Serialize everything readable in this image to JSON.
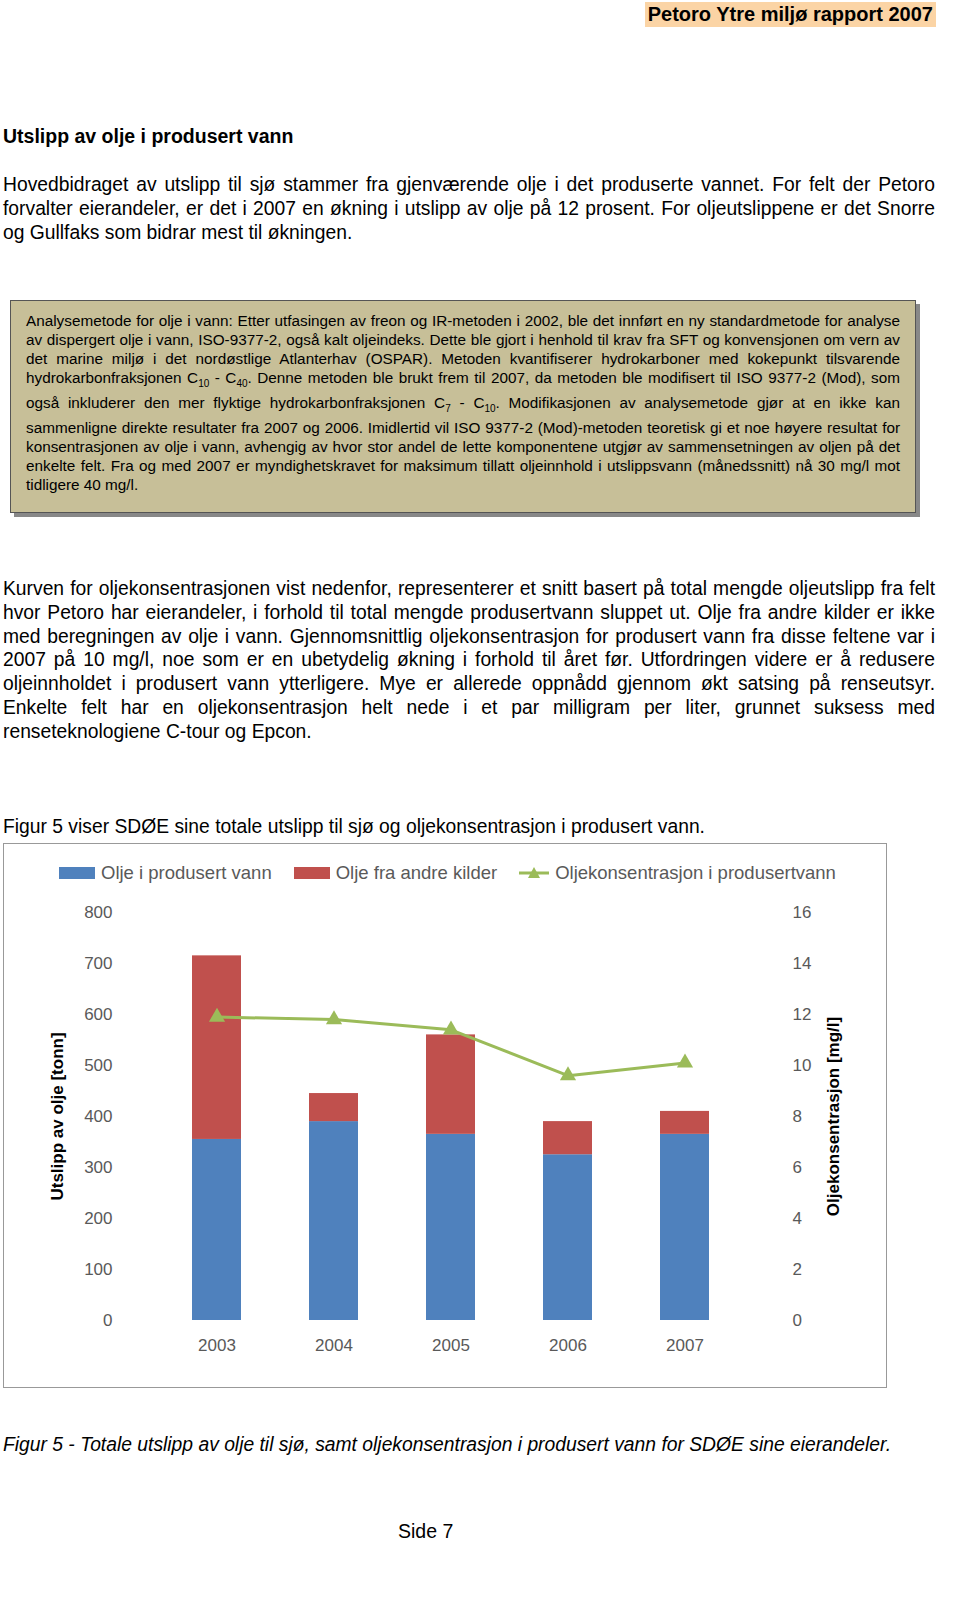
{
  "header": "Petoro Ytre miljø rapport 2007",
  "heading": "Utslipp av olje i produsert vann",
  "paragraph_1": "Hovedbidraget av utslipp til sjø stammer fra gjenværende olje i det produserte vannet. For felt der Petoro forvalter eierandeler, er det i 2007 en økning i utslipp av olje på 12 prosent. For oljeutslippene er det Snorre og Gullfaks som bidrar mest til økningen.",
  "box": [
    "Analysemetode for olje i vann: Etter utfasingen av freon og IR-metoden i 2002, ble det innført en ny standardmetode for analyse av dispergert olje i vann, ISO-9377-2, også kalt oljeindeks. Dette ble gjort i henhold til krav fra SFT og konvensjonen om vern av det marine miljø i det nordøstlige Atlanterhav (OSPAR). Metoden kvantifiserer hydrokarboner med kokepunkt tilsvarende hydrokarbonfraksjonen C",
    {
      "sub": "10"
    },
    " - C",
    {
      "sub": "40"
    },
    ". Denne metoden ble brukt frem til 2007, da metoden ble modifisert til ISO 9377-2 (Mod), som også inkluderer den mer flyktige hydrokarbonfraksjonen C",
    {
      "sub": "7"
    },
    " - C",
    {
      "sub": "10"
    },
    ". Modifikasjonen av analysemetode gjør at en ikke kan sammenligne direkte resultater fra 2007 og 2006. Imidlertid vil ISO 9377-2 (Mod)-metoden teoretisk gi et noe høyere resultat for konsentrasjonen av olje i vann, avhengig av hvor stor andel de lette komponentene utgjør av sammensetningen av oljen på det enkelte felt. Fra og med 2007 er myndighetskravet for maksimum tillatt oljeinnhold i utslippsvann (månedssnitt) nå 30 mg/l mot tidligere 40 mg/l."
  ],
  "paragraph_2": "Kurven for oljekonsentrasjonen vist nedenfor, representerer et snitt basert på total mengde oljeutslipp fra felt hvor Petoro har eierandeler, i forhold til total mengde produsertvann sluppet ut. Olje fra andre kilder er ikke med beregningen av olje i vann. Gjennomsnittlig oljekonsentrasjon for produsert vann fra disse feltene var i 2007 på 10 mg/l, noe som er en ubetydelig økning i forhold til året før. Utfordringen videre er å redusere oljeinnholdet i produsert vann ytterligere. Mye er allerede oppnådd gjennom økt satsing på renseutsyr. Enkelte felt har en oljekonsentrasjon helt nede i et par milligram per liter, grunnet suksess med renseteknologiene C-tour og Epcon.",
  "paragraph_3": "Figur 5 viser SDØE sine totale utslipp til sjø og oljekonsentrasjon i produsert vann.",
  "chart_data": {
    "type": "bar",
    "stacked": true,
    "legend": "top",
    "grid": false,
    "categories": [
      "2003",
      "2004",
      "2005",
      "2006",
      "2007"
    ],
    "series": [
      {
        "name": "Olje i produsert vann",
        "color": "#4f81bd",
        "type": "bar",
        "values": [
          355,
          390,
          365,
          325,
          365
        ]
      },
      {
        "name": "Olje fra andre kilder",
        "color": "#c0504d",
        "type": "bar",
        "values": [
          360,
          55,
          195,
          65,
          45
        ]
      },
      {
        "name": "Oljekonsentrasjon i produsertvann",
        "color": "#9bbb59",
        "type": "line",
        "axis": "y2",
        "marker": "triangle",
        "values": [
          11.9,
          11.8,
          11.4,
          9.6,
          10.1
        ]
      }
    ],
    "ylabel": "Utslipp av olje [tonn]",
    "ylim": [
      0,
      800
    ],
    "yticks": [
      0,
      100,
      200,
      300,
      400,
      500,
      600,
      700,
      800
    ],
    "y2label": "Oljekonsentrasjon [mg/l]",
    "y2lim": [
      0,
      16
    ],
    "y2ticks": [
      0,
      2,
      4,
      6,
      8,
      10,
      12,
      14,
      16
    ]
  },
  "caption": "Figur 5 - Totale utslipp av olje til sjø, samt oljekonsentrasjon i produsert vann for SDØE sine eierandeler.",
  "footer": "Side 7"
}
